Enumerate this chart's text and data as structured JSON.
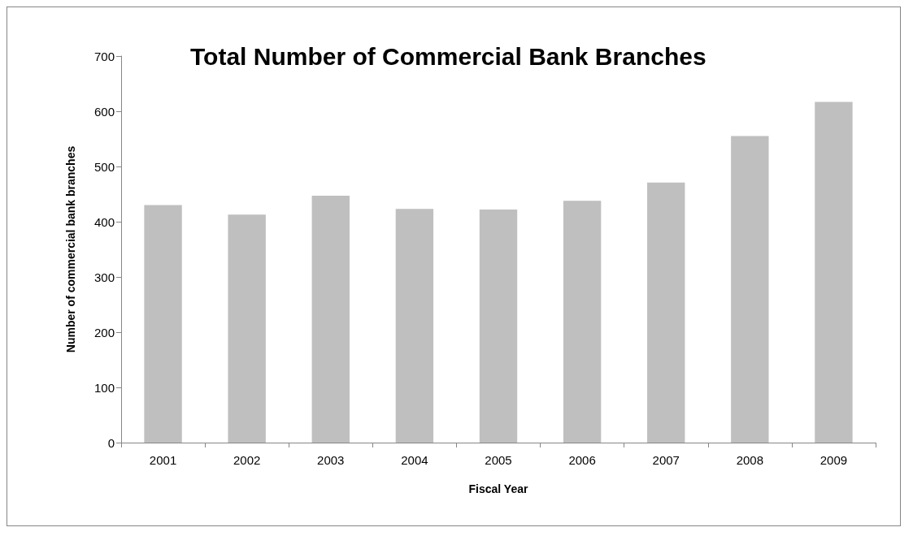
{
  "chart_data": {
    "type": "bar",
    "title": "Total Number of Commercial Bank Branches",
    "xlabel": "Fiscal Year",
    "ylabel": "Number of commercial bank branches",
    "categories": [
      "2001",
      "2002",
      "2003",
      "2004",
      "2005",
      "2006",
      "2007",
      "2008",
      "2009"
    ],
    "values": [
      430,
      413,
      447,
      423,
      422,
      438,
      471,
      555,
      617
    ],
    "color": "#bfbfbf",
    "ylim": [
      0,
      700
    ],
    "yticks": [
      0,
      100,
      200,
      300,
      400,
      500,
      600,
      700
    ],
    "grid": false
  }
}
